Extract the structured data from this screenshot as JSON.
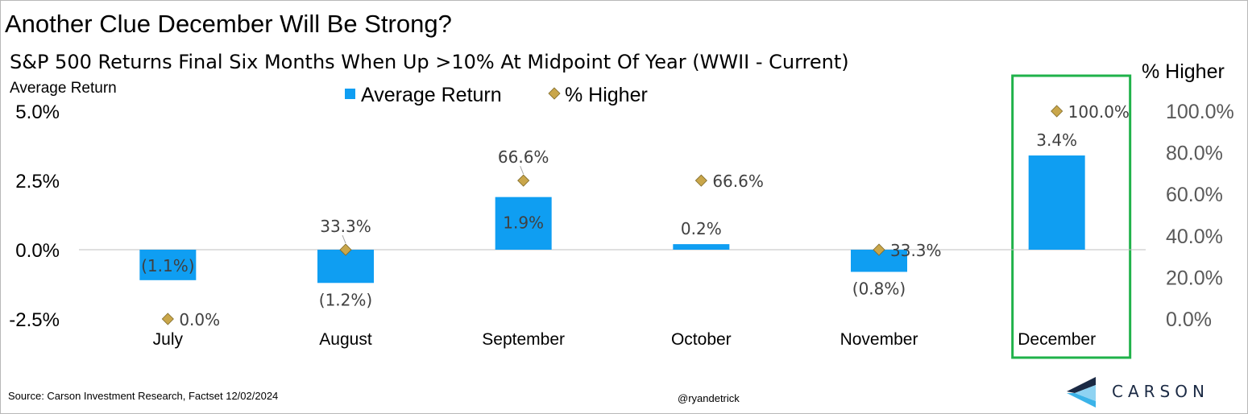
{
  "title": "Another Clue December Will Be Strong?",
  "subtitle": "S&P 500 Returns Final Six Months When Up >10% At Midpoint Of Year (WWII - Current)",
  "source": "Source: Carson Investment Research, Factset 12/02/2024",
  "handle": "@ryandetrick",
  "logo": {
    "text": "CARSON",
    "icon": "carson-chevron-logo"
  },
  "colors": {
    "bar": "#0f9ef2",
    "marker": "#c9a64a",
    "highlight_box": "#1fb24a",
    "axis_line": "#bfbfbf"
  },
  "chart_data": {
    "type": "bar",
    "categories": [
      "July",
      "August",
      "September",
      "October",
      "November",
      "December"
    ],
    "series": [
      {
        "name": "Average Return",
        "type": "bar",
        "axis": "left",
        "values": [
          -1.1,
          -1.2,
          1.9,
          0.2,
          -0.8,
          3.4
        ],
        "labels": [
          "(1.1%)",
          "(1.2%)",
          "1.9%",
          "0.2%",
          "(0.8%)",
          "3.4%"
        ]
      },
      {
        "name": "% Higher",
        "type": "scatter",
        "marker": "diamond",
        "axis": "right",
        "values": [
          0.0,
          33.3,
          66.6,
          66.6,
          33.3,
          100.0
        ],
        "labels": [
          "0.0%",
          "33.3%",
          "66.6%",
          "66.6%",
          "33.3%",
          "100.0%"
        ]
      }
    ],
    "y_left": {
      "label": "Average Return",
      "ylim": [
        -2.5,
        5.0
      ],
      "ticks": [
        5.0,
        2.5,
        0.0,
        -2.5
      ],
      "tick_labels": [
        "5.0%",
        "2.5%",
        "0.0%",
        "-2.5%"
      ]
    },
    "y_right": {
      "label": "% Higher",
      "ylim": [
        0,
        100
      ],
      "ticks": [
        100,
        80,
        60,
        40,
        20,
        0
      ],
      "tick_labels": [
        "100.0%",
        "80.0%",
        "60.0%",
        "40.0%",
        "20.0%",
        "0.0%"
      ]
    },
    "legend": {
      "placement": "top-center",
      "entries": [
        "Average Return",
        "% Higher"
      ]
    },
    "highlight": "December",
    "grid": false
  }
}
